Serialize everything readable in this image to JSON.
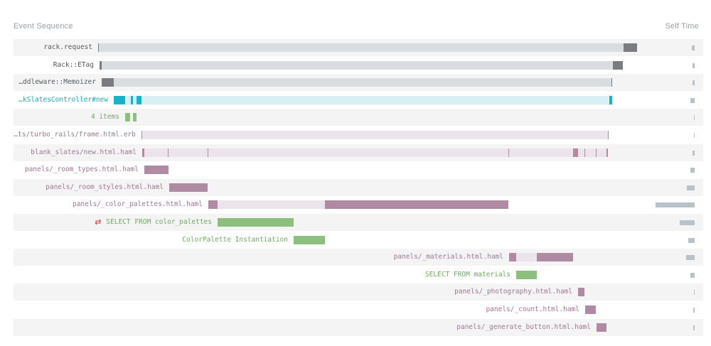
{
  "header": {
    "left": "Event Sequence",
    "right": "Self Time"
  },
  "colors": {
    "request": "#dadddf",
    "request_self": "#7a7c80",
    "controller": "#d7f0f3",
    "controller_self": "#1ab2c7",
    "controller_text": "#1aa9bd",
    "view": "#ece4ec",
    "view_self": "#b089a3",
    "view_text": "#a07690",
    "query": "#8dc07f",
    "query_text": "#6faa5f",
    "plain_text": "#555a60",
    "self_time": "#b8c2c8"
  },
  "chart_data": {
    "type": "timeline",
    "title": "",
    "xlabel": "",
    "ylabel": "",
    "columns": [
      "Event Sequence",
      "Self Time"
    ],
    "events": [
      {
        "label": "rack.request",
        "kind": "request",
        "depth": 0,
        "start": 0,
        "end": 758,
        "self_segments": [
          [
            0,
            1
          ],
          [
            739,
            758
          ]
        ],
        "self_time": 4
      },
      {
        "label": "Rack::ETag",
        "kind": "request",
        "depth": 1,
        "start": 2,
        "end": 738,
        "self_segments": [
          [
            2,
            5
          ],
          [
            724,
            738
          ]
        ],
        "self_time": 3
      },
      {
        "label": "…ddleware::Memoizer",
        "kind": "request",
        "depth": 2,
        "start": 5,
        "end": 723,
        "self_segments": [
          [
            5,
            22
          ],
          [
            722,
            723
          ]
        ],
        "self_time": 3
      },
      {
        "label": "…kSlatesController#new",
        "kind": "controller",
        "depth": 3,
        "start": 22,
        "end": 723,
        "self_segments": [
          [
            22,
            38
          ],
          [
            46,
            49
          ],
          [
            54,
            61
          ],
          [
            719,
            723
          ]
        ],
        "self_time": 6
      },
      {
        "label": "4 items",
        "kind": "query",
        "depth": 4,
        "start": 38,
        "end": 54,
        "self_segments": [
          [
            38,
            45
          ],
          [
            49,
            54
          ]
        ],
        "self_time": 1
      },
      {
        "label": "…ts/turbo_rails/frame.html.erb",
        "kind": "view",
        "depth": 4,
        "start": 61,
        "end": 718,
        "self_segments": [
          [
            61,
            62
          ],
          [
            717,
            718
          ]
        ],
        "self_time": 1
      },
      {
        "label": "blank_slates/new.html.haml",
        "kind": "view",
        "depth": 5,
        "start": 62,
        "end": 717,
        "self_segments": [
          [
            62,
            65
          ],
          [
            98,
            99
          ],
          [
            154,
            155
          ],
          [
            577,
            578
          ],
          [
            668,
            675
          ],
          [
            684,
            685
          ],
          [
            700,
            701
          ],
          [
            715,
            717
          ]
        ],
        "self_time": 3
      },
      {
        "label": "panels/_room_types.html.haml",
        "kind": "view",
        "depth": 6,
        "start": 65,
        "end": 99,
        "self_segments": [
          [
            65,
            99
          ]
        ],
        "self_time": 6
      },
      {
        "label": "panels/_room_styles.html.haml",
        "kind": "view",
        "depth": 6,
        "start": 100,
        "end": 154,
        "self_segments": [
          [
            100,
            154
          ]
        ],
        "self_time": 11
      },
      {
        "label": "panels/_color_palettes.html.haml",
        "kind": "view",
        "depth": 6,
        "start": 155,
        "end": 577,
        "self_segments": [
          [
            155,
            168
          ],
          [
            319,
            577
          ]
        ],
        "self_time": 57
      },
      {
        "label": "SELECT FROM color_palettes",
        "kind": "query",
        "depth": 7,
        "start": 168,
        "end": 275,
        "self_segments": [
          [
            168,
            275
          ]
        ],
        "self_time": 22,
        "icon": "cache-refresh-icon"
      },
      {
        "label": "ColorPalette Instantiation",
        "kind": "query",
        "depth": 7,
        "start": 275,
        "end": 319,
        "self_segments": [
          [
            275,
            319
          ]
        ],
        "self_time": 9
      },
      {
        "label": "panels/_materials.html.haml",
        "kind": "view",
        "depth": 6,
        "start": 578,
        "end": 668,
        "self_segments": [
          [
            578,
            588
          ],
          [
            617,
            668
          ]
        ],
        "self_time": 12
      },
      {
        "label": "SELECT FROM materials",
        "kind": "query",
        "depth": 7,
        "start": 588,
        "end": 617,
        "self_segments": [
          [
            588,
            617
          ]
        ],
        "self_time": 6
      },
      {
        "label": "panels/_photography.html.haml",
        "kind": "view",
        "depth": 6,
        "start": 675,
        "end": 684,
        "self_segments": [
          [
            675,
            684
          ]
        ],
        "self_time": 1
      },
      {
        "label": "panels/_count.html.haml",
        "kind": "view",
        "depth": 6,
        "start": 685,
        "end": 700,
        "self_segments": [
          [
            685,
            700
          ]
        ],
        "self_time": 2
      },
      {
        "label": "panels/_generate_button.html.haml",
        "kind": "view",
        "depth": 6,
        "start": 701,
        "end": 715,
        "self_segments": [
          [
            701,
            715
          ]
        ],
        "self_time": 2
      }
    ],
    "time_range": [
      0,
      758
    ],
    "self_time_range": [
      0,
      60
    ]
  }
}
